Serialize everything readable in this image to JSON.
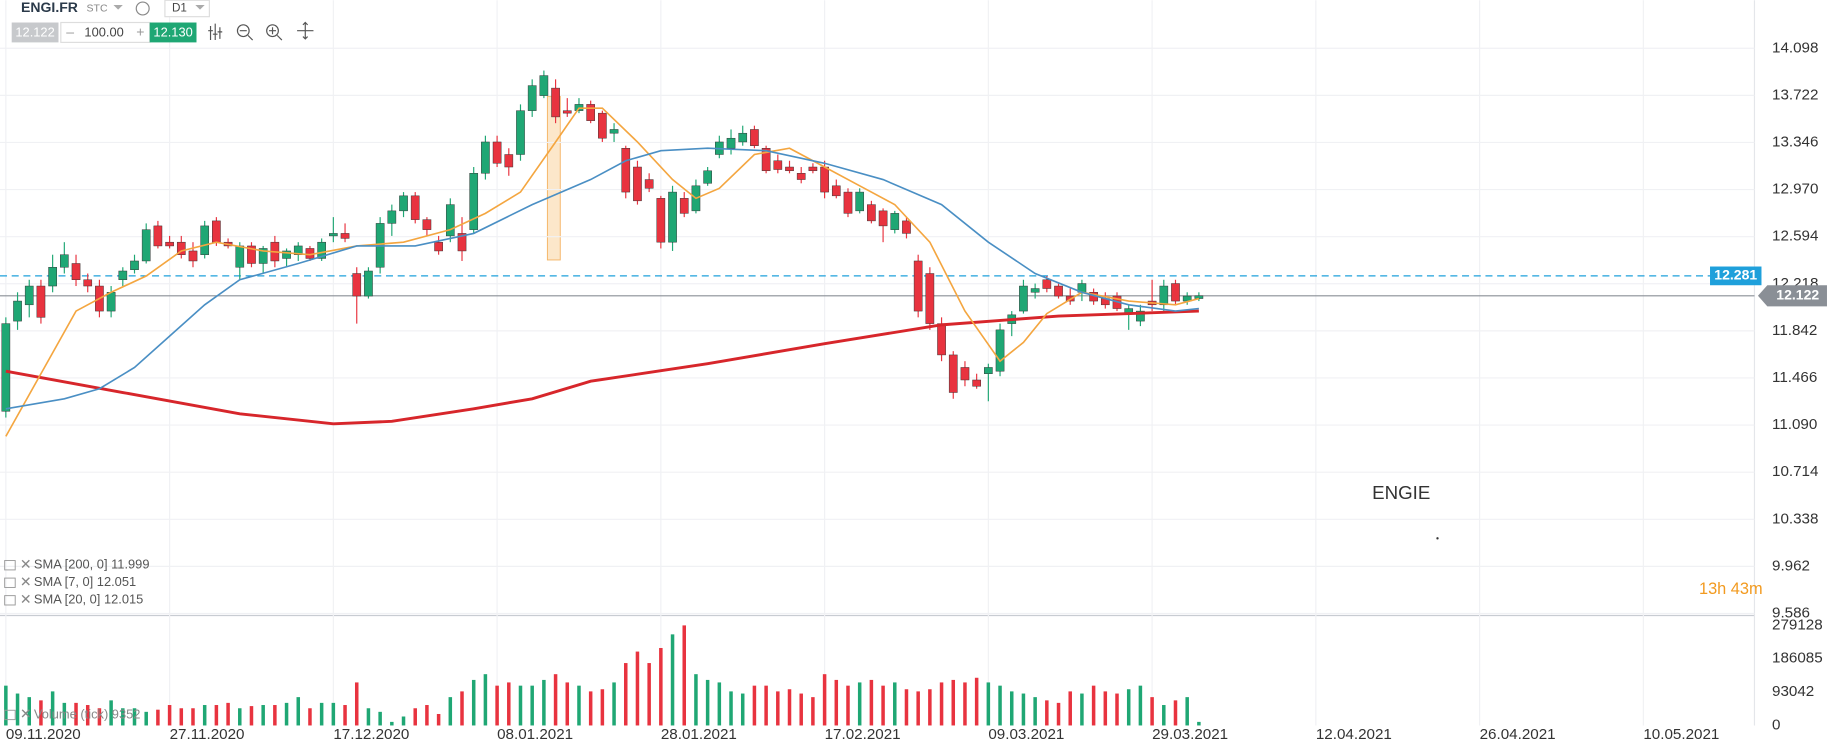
{
  "header": {
    "symbol": "ENGI.FR",
    "kind": "STC",
    "timeframe": "D1",
    "bid": "12.122",
    "volume": "100.00",
    "ask": "12.130"
  },
  "chart_data": {
    "type": "candlestick",
    "xlim": [
      -0.5,
      149.5
    ],
    "xticks": [
      {
        "value": 0,
        "label": "09.11.2020"
      },
      {
        "value": 14,
        "label": "27.11.2020"
      },
      {
        "value": 28,
        "label": "17.12.2020"
      },
      {
        "value": 42,
        "label": "08.01.2021"
      },
      {
        "value": 56,
        "label": "28.01.2021"
      },
      {
        "value": 70,
        "label": "17.02.2021"
      },
      {
        "value": 84,
        "label": "09.03.2021"
      },
      {
        "value": 98,
        "label": "29.03.2021"
      },
      {
        "value": 112,
        "label": "12.04.2021"
      },
      {
        "value": 126,
        "label": "26.04.2021"
      },
      {
        "value": 140,
        "label": "10.05.2021"
      }
    ],
    "ylim": [
      9.579,
      14.481
    ],
    "yticks": [
      14.098,
      13.722,
      13.346,
      {
        "value": 12.97,
        "label": "12.970"
      },
      12.594,
      12.218,
      11.842,
      11.466,
      {
        "value": 11.09,
        "label": "11.090"
      },
      10.714,
      10.338,
      9.962,
      9.586
    ],
    "grid": true,
    "up_color": "#1fa774",
    "down_color": "#e8333f",
    "open": [
      11.2,
      11.92,
      12.05,
      12.2,
      12.2,
      12.35,
      12.38,
      12.25,
      12.2,
      12.0,
      12.25,
      12.33,
      12.4,
      12.68,
      12.55,
      12.55,
      12.48,
      12.45,
      12.72,
      12.55,
      12.35,
      12.52,
      12.38,
      12.55,
      12.42,
      12.45,
      12.5,
      12.42,
      12.6,
      12.62,
      12.3,
      12.12,
      12.35,
      12.7,
      12.8,
      12.92,
      12.73,
      12.55,
      12.6,
      12.62,
      12.65,
      13.1,
      13.35,
      13.25,
      13.25,
      13.6,
      13.72,
      13.78,
      13.6,
      13.6,
      13.65,
      13.58,
      13.42,
      13.3,
      13.15,
      13.05,
      12.9,
      12.55,
      12.9,
      12.8,
      13.02,
      13.25,
      13.3,
      13.35,
      13.45,
      13.3,
      13.2,
      13.15,
      13.1,
      13.15,
      13.15,
      13.0,
      12.95,
      12.8,
      12.85,
      12.8,
      12.65,
      12.72,
      12.4,
      12.3,
      11.9,
      11.65,
      11.55,
      11.45,
      11.5,
      11.52,
      11.9,
      12.0,
      12.15,
      12.25,
      12.2,
      12.12,
      12.15,
      12.15,
      12.1,
      12.12,
      11.98,
      11.92,
      12.08,
      12.05,
      12.22,
      12.08,
      12.1
    ],
    "high": [
      11.95,
      12.15,
      12.25,
      12.25,
      12.45,
      12.55,
      12.45,
      12.3,
      12.25,
      12.2,
      12.35,
      12.45,
      12.7,
      12.72,
      12.6,
      12.6,
      12.55,
      12.72,
      12.75,
      12.58,
      12.55,
      12.55,
      12.52,
      12.6,
      12.5,
      12.55,
      12.52,
      12.58,
      12.75,
      12.7,
      12.35,
      12.35,
      12.75,
      12.85,
      12.95,
      12.95,
      12.75,
      12.6,
      12.9,
      12.75,
      13.15,
      13.4,
      13.4,
      13.3,
      13.65,
      13.85,
      13.92,
      13.85,
      13.7,
      13.7,
      13.68,
      13.6,
      13.5,
      13.32,
      13.2,
      13.1,
      12.92,
      13.0,
      12.95,
      13.05,
      13.15,
      13.4,
      13.45,
      13.48,
      13.48,
      13.32,
      13.25,
      13.2,
      13.15,
      13.18,
      13.2,
      13.05,
      12.98,
      12.98,
      12.88,
      12.82,
      12.8,
      12.75,
      12.45,
      12.35,
      11.95,
      11.68,
      11.6,
      11.5,
      11.58,
      11.9,
      12.0,
      12.25,
      12.22,
      12.28,
      12.22,
      12.18,
      12.25,
      12.18,
      12.15,
      12.15,
      12.05,
      12.05,
      12.25,
      12.25,
      12.25,
      12.15,
      12.15
    ],
    "low": [
      11.15,
      11.85,
      11.95,
      11.9,
      12.15,
      12.3,
      12.2,
      12.15,
      11.95,
      11.95,
      12.2,
      12.3,
      12.38,
      12.5,
      12.5,
      12.42,
      12.35,
      12.42,
      12.52,
      12.5,
      12.25,
      12.35,
      12.3,
      12.35,
      12.35,
      12.4,
      12.4,
      12.4,
      12.55,
      12.55,
      11.9,
      12.1,
      12.3,
      12.6,
      12.75,
      12.7,
      12.6,
      12.45,
      12.55,
      12.4,
      12.62,
      13.05,
      13.15,
      13.08,
      13.2,
      13.55,
      13.7,
      13.5,
      13.55,
      13.58,
      13.5,
      13.35,
      13.35,
      12.9,
      12.85,
      12.95,
      12.5,
      12.48,
      12.75,
      12.78,
      13.0,
      13.22,
      13.25,
      13.32,
      13.3,
      13.1,
      13.1,
      13.1,
      13.02,
      13.1,
      12.9,
      12.9,
      12.75,
      12.78,
      12.7,
      12.55,
      12.62,
      12.58,
      11.95,
      11.85,
      11.6,
      11.3,
      11.4,
      11.38,
      11.28,
      11.48,
      11.8,
      11.98,
      12.1,
      12.15,
      12.1,
      12.05,
      12.08,
      12.05,
      12.02,
      12.0,
      11.85,
      11.88,
      12.0,
      12.0,
      12.05,
      12.05,
      12.08
    ],
    "close": [
      11.9,
      12.08,
      12.2,
      11.95,
      12.35,
      12.45,
      12.25,
      12.2,
      12.0,
      12.15,
      12.32,
      12.4,
      12.65,
      12.52,
      12.52,
      12.45,
      12.4,
      12.68,
      12.55,
      12.52,
      12.52,
      12.38,
      12.5,
      12.4,
      12.48,
      12.52,
      12.42,
      12.55,
      12.62,
      12.58,
      12.12,
      12.32,
      12.7,
      12.8,
      12.92,
      12.73,
      12.65,
      12.48,
      12.85,
      12.48,
      13.1,
      13.35,
      13.18,
      13.15,
      13.6,
      13.8,
      13.88,
      13.55,
      13.58,
      13.65,
      13.52,
      13.38,
      13.45,
      12.95,
      12.88,
      12.98,
      12.55,
      12.95,
      12.78,
      13.0,
      13.12,
      13.35,
      13.38,
      13.42,
      13.32,
      13.12,
      13.13,
      13.12,
      13.05,
      13.12,
      12.95,
      12.92,
      12.78,
      12.95,
      12.72,
      12.68,
      12.78,
      12.62,
      12.0,
      11.9,
      11.65,
      11.35,
      11.45,
      11.4,
      11.55,
      11.85,
      11.97,
      12.2,
      12.18,
      12.18,
      12.12,
      12.08,
      12.22,
      12.08,
      12.05,
      12.02,
      12.02,
      12.0,
      12.05,
      12.2,
      12.08,
      12.12,
      12.122
    ],
    "indicators": [
      {
        "name": "SMA [200, 0] 11.999",
        "color": "#d7262b",
        "x": [
          0,
          10,
          20,
          28,
          33,
          40,
          45,
          50,
          55,
          60,
          70,
          80,
          90,
          102
        ],
        "values": [
          11.52,
          11.35,
          11.18,
          11.1,
          11.12,
          11.22,
          11.3,
          11.44,
          11.51,
          11.58,
          11.74,
          11.89,
          11.96,
          12.0
        ]
      },
      {
        "name": "SMA [7, 0] 12.051",
        "color": "#f4a640",
        "x": [
          0,
          3,
          6,
          9,
          12,
          15,
          18,
          22,
          26,
          30,
          34,
          38,
          41,
          44,
          47,
          49,
          51,
          54,
          57,
          59,
          61,
          64,
          67,
          70,
          73,
          76,
          79,
          82,
          85,
          87,
          89,
          92,
          96,
          100,
          102
        ],
        "values": [
          11.0,
          11.5,
          12.0,
          12.15,
          12.28,
          12.48,
          12.55,
          12.48,
          12.45,
          12.52,
          12.55,
          12.65,
          12.78,
          12.95,
          13.35,
          13.62,
          13.62,
          13.35,
          13.05,
          12.9,
          12.98,
          13.25,
          13.3,
          13.15,
          13.0,
          12.85,
          12.55,
          12.0,
          11.6,
          11.75,
          11.98,
          12.15,
          12.08,
          12.05,
          12.1
        ]
      },
      {
        "name": "SMA [20, 0] 12.015",
        "color": "#4a8fc4",
        "x": [
          0,
          5,
          8,
          11,
          14,
          17,
          20,
          25,
          30,
          35,
          40,
          45,
          50,
          53,
          56,
          60,
          65,
          70,
          75,
          80,
          84,
          88,
          92,
          96,
          100,
          102
        ],
        "values": [
          11.22,
          11.3,
          11.38,
          11.55,
          11.8,
          12.05,
          12.25,
          12.38,
          12.52,
          12.52,
          12.62,
          12.85,
          13.05,
          13.2,
          13.28,
          13.3,
          13.28,
          13.18,
          13.05,
          12.85,
          12.55,
          12.3,
          12.15,
          12.05,
          12.0,
          12.02
        ]
      }
    ],
    "price_lines": [
      {
        "value": 12.281,
        "color": "#1fa0db",
        "dashed": true
      },
      {
        "value": 12.122,
        "color": "#8a8f96",
        "dashed": false
      }
    ],
    "volume": {
      "name": "Volume (tick) 9352",
      "values": [
        111000,
        89000,
        79000,
        70000,
        95000,
        63000,
        63000,
        57000,
        48000,
        70000,
        48000,
        48000,
        38000,
        44000,
        57000,
        48000,
        48000,
        57000,
        57000,
        63000,
        48000,
        54000,
        57000,
        57000,
        63000,
        79000,
        48000,
        63000,
        63000,
        57000,
        120000,
        48000,
        38000,
        10000,
        25000,
        48000,
        57000,
        32000,
        79000,
        95000,
        127000,
        143000,
        111000,
        120000,
        111000,
        111000,
        127000,
        143000,
        120000,
        111000,
        95000,
        101000,
        120000,
        174000,
        206000,
        174000,
        216000,
        254000,
        279000,
        143000,
        127000,
        120000,
        95000,
        89000,
        111000,
        111000,
        95000,
        101000,
        89000,
        79000,
        143000,
        127000,
        111000,
        120000,
        127000,
        111000,
        120000,
        101000,
        95000,
        101000,
        120000,
        127000,
        120000,
        133000,
        120000,
        111000,
        95000,
        89000,
        79000,
        70000,
        63000,
        95000,
        89000,
        111000,
        95000,
        89000,
        101000,
        111000,
        79000,
        57000,
        70000,
        79000,
        10000
      ],
      "y2lim": [
        0,
        300000
      ],
      "y2ticks": [
        279128,
        186085,
        93042,
        0
      ]
    },
    "annotations": {
      "watermark": "ENGIE",
      "countdown": "13h 43m"
    }
  }
}
